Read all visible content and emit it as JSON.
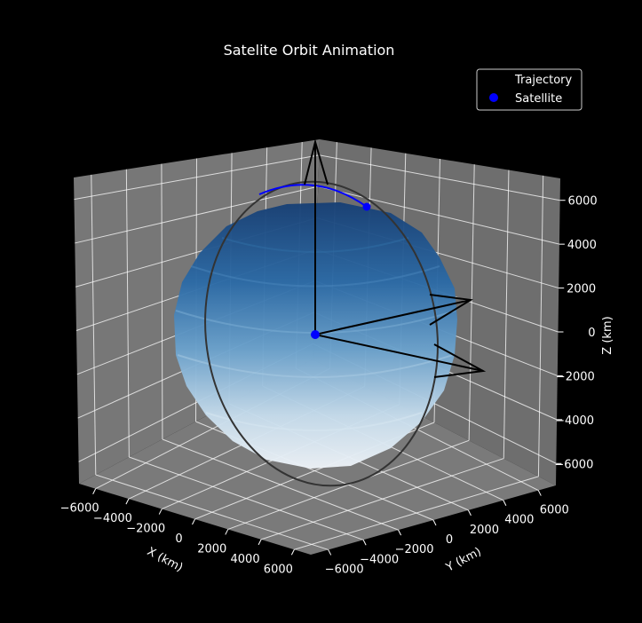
{
  "chart_data": {
    "type": "3d-line",
    "title": "Satelite Orbit Animation",
    "xlabel": "X (km)",
    "ylabel": "Y (km)",
    "zlabel": "Z (km)",
    "xlim": [
      -7000,
      7000
    ],
    "ylim": [
      -7000,
      7000
    ],
    "zlim": [
      -7000,
      7000
    ],
    "x_ticks": [
      "−6000",
      "−4000",
      "−2000",
      "0",
      "2000",
      "4000",
      "6000"
    ],
    "y_ticks": [
      "−6000",
      "−4000",
      "−2000",
      "0",
      "2000",
      "4000",
      "6000"
    ],
    "z_ticks": [
      "−6000",
      "−4000",
      "−2000",
      "0",
      "2000",
      "4000",
      "6000"
    ],
    "tick_values": [
      -6000,
      -4000,
      -2000,
      0,
      2000,
      4000,
      6000
    ],
    "grid": true,
    "legend_position": "top-right",
    "earth_radius_km": 6371,
    "orbit": {
      "semi_major_km": 7500,
      "inclination_deg": 90
    },
    "series": [
      {
        "name": "Trajectory",
        "color": "#0000ff"
      },
      {
        "name": "Satellite",
        "color": "#0000ff",
        "marker": "o",
        "position_km": [
          800,
          800,
          6900
        ]
      }
    ],
    "origin_marker": {
      "color": "#0000ff"
    },
    "colors": {
      "background": "#000000",
      "pane": "#777777",
      "grid": "#ffffff",
      "orbit_outline": "#333333",
      "quiver": "#000000"
    }
  }
}
